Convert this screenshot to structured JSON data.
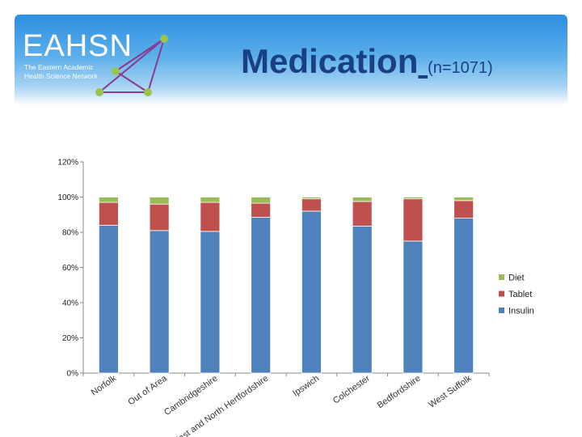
{
  "header": {
    "logo_text": "EAHSN",
    "logo_sub_line1": "The Eastern Academic",
    "logo_sub_line2": "Health Science Network",
    "title_main": "Medication",
    "title_n": "(n=1071)"
  },
  "colors": {
    "insulin": "#4f81bd",
    "tablet": "#c0504d",
    "diet": "#9bbb59"
  },
  "chart_data": {
    "type": "bar",
    "stacked": true,
    "title": "Medication (n=1071)",
    "xlabel": "",
    "ylabel": "",
    "ylim": [
      0,
      120
    ],
    "y_ticks": [
      "0%",
      "20%",
      "40%",
      "60%",
      "80%",
      "100%",
      "120%"
    ],
    "y_tick_values": [
      0,
      20,
      40,
      60,
      80,
      100,
      120
    ],
    "categories": [
      "Norfolk",
      "Out of Area",
      "Cambridgeshire",
      "East and North Hertfordshire",
      "Ipswich",
      "Colchester",
      "Bedfordshire",
      "West Suffolk"
    ],
    "series": [
      {
        "name": "Insulin",
        "values": [
          84,
          81,
          80.5,
          88.5,
          92,
          83.5,
          75,
          88
        ]
      },
      {
        "name": "Tablet",
        "values": [
          13,
          15,
          16.5,
          8,
          7,
          14,
          24,
          10
        ]
      },
      {
        "name": "Diet",
        "values": [
          3,
          4,
          3,
          3.5,
          1,
          2.5,
          1,
          2
        ]
      }
    ],
    "legend": [
      "Diet",
      "Tablet",
      "Insulin"
    ],
    "legend_position": "right",
    "grid": false
  }
}
